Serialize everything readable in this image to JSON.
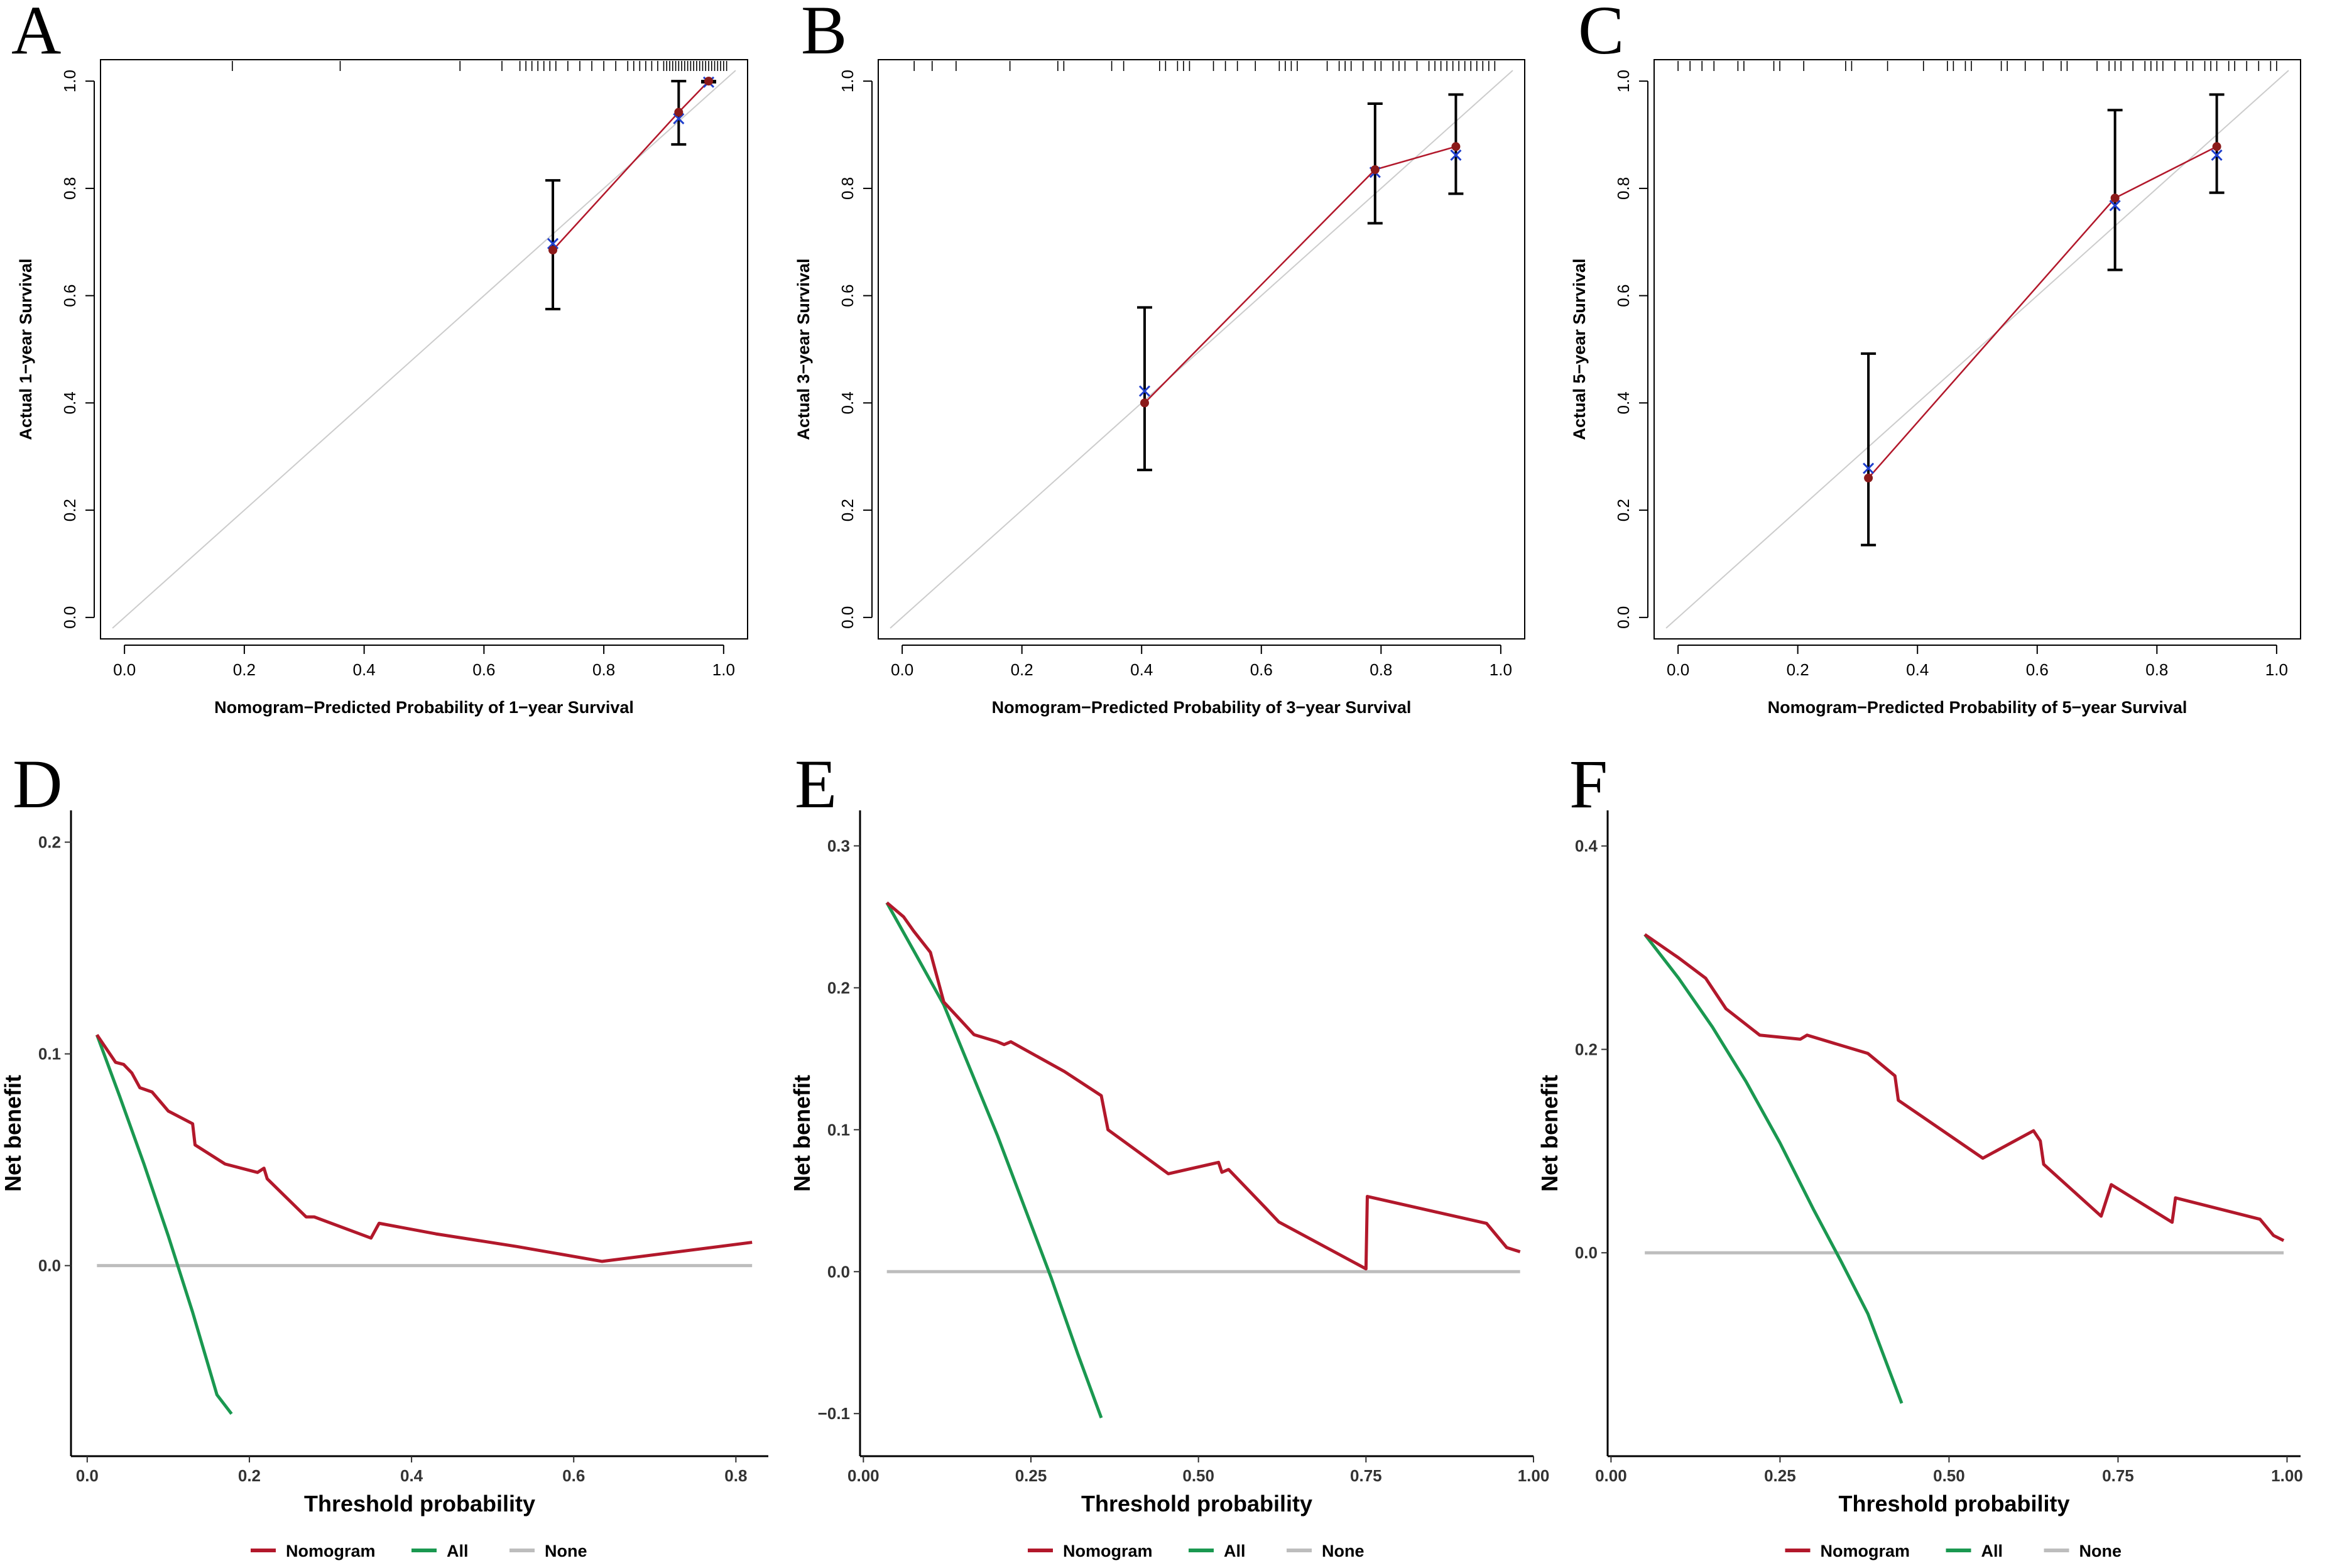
{
  "colors": {
    "nomogram": "#b2182b",
    "all": "#1a9850",
    "none": "#bdbdbd",
    "ideal": "#cccccc",
    "observed_point": "#8b1a1a",
    "corrected_mark": "#1f3fcc"
  },
  "chart_data": [
    {
      "panel": "A",
      "type": "scatter",
      "subtype": "calibration",
      "xlabel": "Nomogram−Predicted Probability of 1−year Survival",
      "ylabel": "Actual 1−year Survival",
      "xlim": [
        -0.04,
        1.04
      ],
      "ylim": [
        -0.04,
        1.04
      ],
      "xticks": [
        "0.0",
        "0.2",
        "0.4",
        "0.6",
        "0.8",
        "1.0"
      ],
      "yticks": [
        "0.0",
        "0.2",
        "0.4",
        "0.6",
        "0.8",
        "1.0"
      ],
      "observed": {
        "x": [
          0.715,
          0.925,
          0.975
        ],
        "y": [
          0.685,
          0.942,
          1.0
        ],
        "lower": [
          0.575,
          0.882,
          0.998
        ],
        "upper": [
          0.815,
          1.0,
          1.0
        ]
      },
      "corrected": {
        "x": [
          0.715,
          0.925,
          0.975
        ],
        "y": [
          0.697,
          0.93,
          0.998
        ]
      },
      "rug": [
        0.18,
        0.36,
        0.56,
        0.63,
        0.66,
        0.67,
        0.68,
        0.69,
        0.7,
        0.71,
        0.72,
        0.74,
        0.76,
        0.78,
        0.8,
        0.82,
        0.84,
        0.85,
        0.86,
        0.87,
        0.88,
        0.89,
        0.9,
        0.905,
        0.91,
        0.915,
        0.92,
        0.925,
        0.93,
        0.935,
        0.94,
        0.945,
        0.95,
        0.955,
        0.96,
        0.965,
        0.97,
        0.975,
        0.98,
        0.985,
        0.99,
        0.995,
        1.0,
        1.005
      ]
    },
    {
      "panel": "B",
      "type": "scatter",
      "subtype": "calibration",
      "xlabel": "Nomogram−Predicted Probability of 3−year Survival",
      "ylabel": "Actual 3−year Survival",
      "xlim": [
        -0.04,
        1.04
      ],
      "ylim": [
        -0.04,
        1.04
      ],
      "xticks": [
        "0.0",
        "0.2",
        "0.4",
        "0.6",
        "0.8",
        "1.0"
      ],
      "yticks": [
        "0.0",
        "0.2",
        "0.4",
        "0.6",
        "0.8",
        "1.0"
      ],
      "observed": {
        "x": [
          0.405,
          0.79,
          0.925
        ],
        "y": [
          0.4,
          0.835,
          0.878
        ],
        "lower": [
          0.275,
          0.735,
          0.79
        ],
        "upper": [
          0.578,
          0.958,
          0.975
        ]
      },
      "corrected": {
        "x": [
          0.405,
          0.79,
          0.925
        ],
        "y": [
          0.422,
          0.83,
          0.862
        ]
      },
      "rug": [
        0.02,
        0.05,
        0.09,
        0.18,
        0.26,
        0.27,
        0.35,
        0.37,
        0.43,
        0.44,
        0.46,
        0.47,
        0.48,
        0.52,
        0.54,
        0.56,
        0.59,
        0.63,
        0.64,
        0.65,
        0.66,
        0.71,
        0.73,
        0.74,
        0.75,
        0.77,
        0.79,
        0.8,
        0.82,
        0.83,
        0.84,
        0.86,
        0.88,
        0.89,
        0.9,
        0.91,
        0.92,
        0.93,
        0.94,
        0.95,
        0.96,
        0.97,
        0.98,
        0.99
      ]
    },
    {
      "panel": "C",
      "type": "scatter",
      "subtype": "calibration",
      "xlabel": "Nomogram−Predicted Probability of 5−year Survival",
      "ylabel": "Actual 5−year Survival",
      "xlim": [
        -0.04,
        1.04
      ],
      "ylim": [
        -0.04,
        1.04
      ],
      "xticks": [
        "0.0",
        "0.2",
        "0.4",
        "0.6",
        "0.8",
        "1.0"
      ],
      "yticks": [
        "0.0",
        "0.2",
        "0.4",
        "0.6",
        "0.8",
        "1.0"
      ],
      "observed": {
        "x": [
          0.318,
          0.73,
          0.9
        ],
        "y": [
          0.26,
          0.782,
          0.878
        ],
        "lower": [
          0.135,
          0.648,
          0.792
        ],
        "upper": [
          0.492,
          0.946,
          0.975
        ]
      },
      "corrected": {
        "x": [
          0.318,
          0.73,
          0.9
        ],
        "y": [
          0.278,
          0.768,
          0.862
        ]
      },
      "rug": [
        0.0,
        0.02,
        0.04,
        0.06,
        0.1,
        0.11,
        0.16,
        0.17,
        0.21,
        0.28,
        0.29,
        0.35,
        0.41,
        0.45,
        0.46,
        0.48,
        0.49,
        0.54,
        0.55,
        0.58,
        0.61,
        0.64,
        0.65,
        0.7,
        0.72,
        0.73,
        0.74,
        0.76,
        0.78,
        0.79,
        0.8,
        0.81,
        0.83,
        0.85,
        0.86,
        0.88,
        0.89,
        0.9,
        0.92,
        0.93,
        0.95,
        0.97,
        0.99,
        1.0
      ]
    },
    {
      "panel": "D",
      "type": "line",
      "subtype": "decision_curve",
      "xlabel": "Threshold probability",
      "ylabel": "Net benefit",
      "xlim": [
        -0.02,
        0.84
      ],
      "ylim": [
        -0.09,
        0.215
      ],
      "xticks": [
        0.0,
        0.2,
        0.4,
        0.6,
        0.8
      ],
      "xtick_labels": [
        "0.0",
        "0.2",
        "0.4",
        "0.6",
        "0.8"
      ],
      "yticks": [
        0.0,
        0.1,
        0.2
      ],
      "ytick_labels": [
        "0.0",
        "0.1",
        "0.2"
      ],
      "series": [
        {
          "name": "Nomogram",
          "x": [
            0.012,
            0.035,
            0.045,
            0.055,
            0.065,
            0.08,
            0.1,
            0.13,
            0.133,
            0.17,
            0.21,
            0.218,
            0.222,
            0.27,
            0.28,
            0.35,
            0.36,
            0.43,
            0.53,
            0.635,
            0.82
          ],
          "y": [
            0.109,
            0.096,
            0.095,
            0.091,
            0.084,
            0.082,
            0.073,
            0.067,
            0.057,
            0.048,
            0.044,
            0.046,
            0.041,
            0.023,
            0.023,
            0.013,
            0.02,
            0.015,
            0.009,
            0.002,
            0.011
          ]
        },
        {
          "name": "All",
          "x": [
            0.012,
            0.04,
            0.07,
            0.1,
            0.13,
            0.16,
            0.178
          ],
          "y": [
            0.109,
            0.08,
            0.048,
            0.014,
            -0.022,
            -0.061,
            -0.07
          ]
        },
        {
          "name": "None",
          "x": [
            0.012,
            0.82
          ],
          "y": [
            0.0,
            0.0
          ]
        }
      ]
    },
    {
      "panel": "E",
      "type": "line",
      "subtype": "decision_curve",
      "xlabel": "Threshold probability",
      "ylabel": "Net benefit",
      "xlim": [
        -0.005,
        1.0
      ],
      "ylim": [
        -0.13,
        0.325
      ],
      "xticks": [
        0.0,
        0.25,
        0.5,
        0.75,
        1.0
      ],
      "xtick_labels": [
        "0.00",
        "0.25",
        "0.50",
        "0.75",
        "1.00"
      ],
      "yticks": [
        -0.1,
        0.0,
        0.1,
        0.2,
        0.3
      ],
      "ytick_labels": [
        "−0.1",
        "0.0",
        "0.1",
        "0.2",
        "0.3"
      ],
      "series": [
        {
          "name": "Nomogram",
          "x": [
            0.035,
            0.06,
            0.075,
            0.1,
            0.12,
            0.165,
            0.2,
            0.21,
            0.22,
            0.3,
            0.355,
            0.365,
            0.455,
            0.53,
            0.535,
            0.545,
            0.6,
            0.62,
            0.75,
            0.752,
            0.93,
            0.96,
            0.98
          ],
          "y": [
            0.26,
            0.25,
            0.24,
            0.225,
            0.19,
            0.167,
            0.162,
            0.16,
            0.162,
            0.141,
            0.124,
            0.1,
            0.069,
            0.077,
            0.07,
            0.072,
            0.045,
            0.035,
            0.002,
            0.053,
            0.034,
            0.017,
            0.014
          ]
        },
        {
          "name": "All",
          "x": [
            0.035,
            0.08,
            0.12,
            0.16,
            0.2,
            0.24,
            0.28,
            0.32,
            0.355
          ],
          "y": [
            0.26,
            0.222,
            0.188,
            0.142,
            0.096,
            0.046,
            -0.004,
            -0.058,
            -0.103
          ]
        },
        {
          "name": "None",
          "x": [
            0.035,
            0.98
          ],
          "y": [
            0.0,
            0.0
          ]
        }
      ]
    },
    {
      "panel": "F",
      "type": "line",
      "subtype": "decision_curve",
      "xlabel": "Threshold probability",
      "ylabel": "Net benefit",
      "xlim": [
        -0.005,
        1.02
      ],
      "ylim": [
        -0.2,
        0.435
      ],
      "xticks": [
        0.0,
        0.25,
        0.5,
        0.75,
        1.0
      ],
      "xtick_labels": [
        "0.00",
        "0.25",
        "0.50",
        "0.75",
        "1.00"
      ],
      "yticks": [
        0.0,
        0.2,
        0.4
      ],
      "ytick_labels": [
        "0.0",
        "0.2",
        "0.4"
      ],
      "series": [
        {
          "name": "Nomogram",
          "x": [
            0.05,
            0.1,
            0.14,
            0.17,
            0.22,
            0.28,
            0.29,
            0.38,
            0.42,
            0.425,
            0.55,
            0.625,
            0.635,
            0.64,
            0.725,
            0.74,
            0.83,
            0.835,
            0.96,
            0.98,
            0.995
          ],
          "y": [
            0.313,
            0.29,
            0.27,
            0.24,
            0.214,
            0.21,
            0.214,
            0.196,
            0.174,
            0.15,
            0.093,
            0.12,
            0.11,
            0.087,
            0.036,
            0.067,
            0.03,
            0.054,
            0.033,
            0.017,
            0.012
          ]
        },
        {
          "name": "All",
          "x": [
            0.05,
            0.1,
            0.15,
            0.2,
            0.25,
            0.3,
            0.34,
            0.38,
            0.43
          ],
          "y": [
            0.313,
            0.27,
            0.222,
            0.168,
            0.108,
            0.042,
            -0.008,
            -0.06,
            -0.148
          ]
        },
        {
          "name": "None",
          "x": [
            0.05,
            0.995
          ],
          "y": [
            0.0,
            0.0
          ]
        }
      ]
    }
  ]
}
